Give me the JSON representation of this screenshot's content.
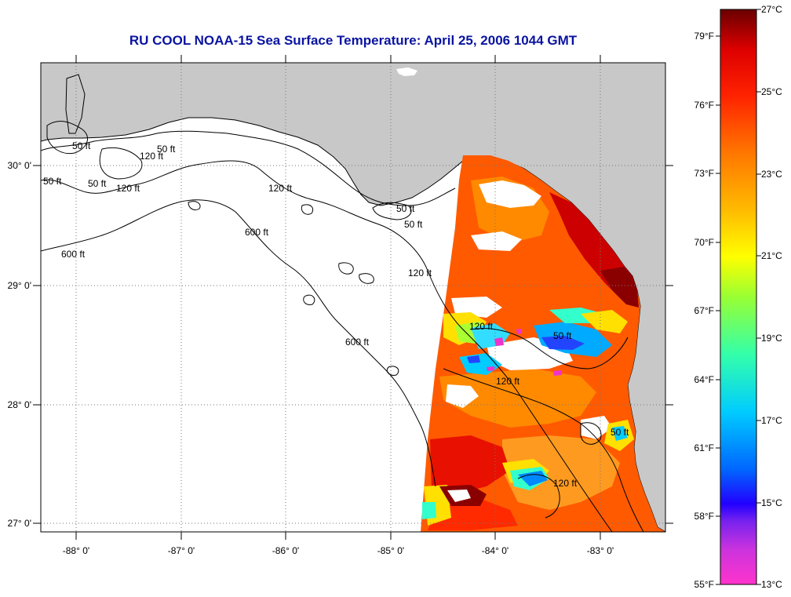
{
  "title": "RU COOL  NOAA-15  Sea Surface Temperature:  April 25, 2006 1044 GMT",
  "map": {
    "lon_labels": [
      "-88° 0'",
      "-87° 0'",
      "-86° 0'",
      "-85° 0'",
      "-84° 0'",
      "-83° 0'"
    ],
    "lat_labels": [
      "30° 0'",
      "29° 0'",
      "28° 0'",
      "27° 0'"
    ],
    "contour_labels": [
      "50 ft",
      "120 ft",
      "600 ft",
      "50 ft",
      "120 ft",
      "600 ft",
      "50 ft",
      "120 ft",
      "600 ft",
      "120 ft",
      "50 ft",
      "120 ft",
      "50 ft",
      "120 ft",
      "50 ft",
      "50 ft",
      "120 ft",
      "50 ft"
    ],
    "colors": {
      "land": "#c8c8c8",
      "ocean": "#ffffff",
      "grid": "#7a7a7a"
    }
  },
  "colorbar": {
    "f_labels": [
      "79°F",
      "76°F",
      "73°F",
      "70°F",
      "67°F",
      "64°F",
      "61°F",
      "58°F",
      "55°F"
    ],
    "c_labels": [
      "27°C",
      "25°C",
      "23°C",
      "21°C",
      "19°C",
      "17°C",
      "15°C",
      "13°C"
    ],
    "stops": [
      "#ff33cc",
      "#9933cc",
      "#2200ff",
      "#0055ff",
      "#00ccff",
      "#33ff99",
      "#ccff33",
      "#ffdd00",
      "#ff8800",
      "#ff3300",
      "#ee0000",
      "#7a0000"
    ]
  }
}
